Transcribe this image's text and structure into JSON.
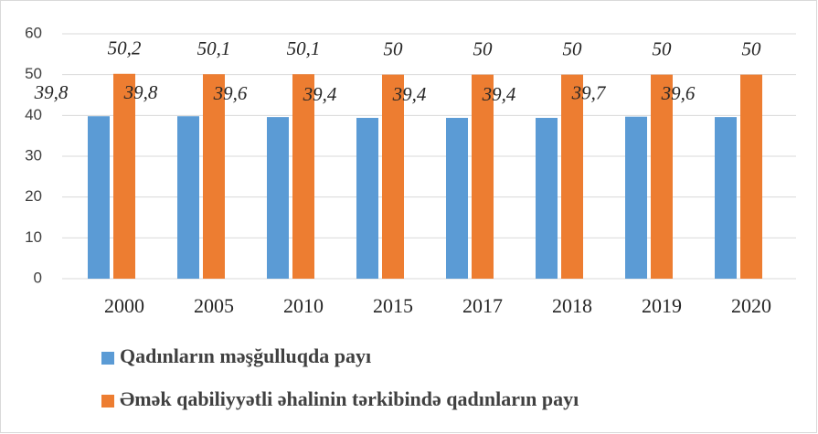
{
  "chart_data": {
    "type": "bar",
    "categories": [
      "2000",
      "2005",
      "2010",
      "2015",
      "2017",
      "2018",
      "2019",
      "2020"
    ],
    "series": [
      {
        "name": "Qadınların məşğulluqda payı",
        "color": "#5b9bd5",
        "values": [
          39.8,
          39.8,
          39.6,
          39.4,
          39.4,
          39.4,
          39.7,
          39.6
        ],
        "value_labels": [
          "39,8",
          "39,8",
          "39,6",
          "39,4",
          "39,4",
          "39,4",
          "39,7",
          "39,6"
        ]
      },
      {
        "name": "Əmək qabiliyyətli əhalinin tərkibində qadınların payı",
        "color": "#ed7d31",
        "values": [
          50.2,
          50.1,
          50.1,
          50,
          50,
          50,
          50,
          50
        ],
        "value_labels": [
          "50,2",
          "50,1",
          "50,1",
          "50",
          "50",
          "50",
          "50",
          "50"
        ]
      }
    ],
    "ylim": [
      0,
      60
    ],
    "yticks": [
      0,
      10,
      20,
      30,
      40,
      50,
      60
    ],
    "grid": true,
    "legend": "bottom"
  }
}
